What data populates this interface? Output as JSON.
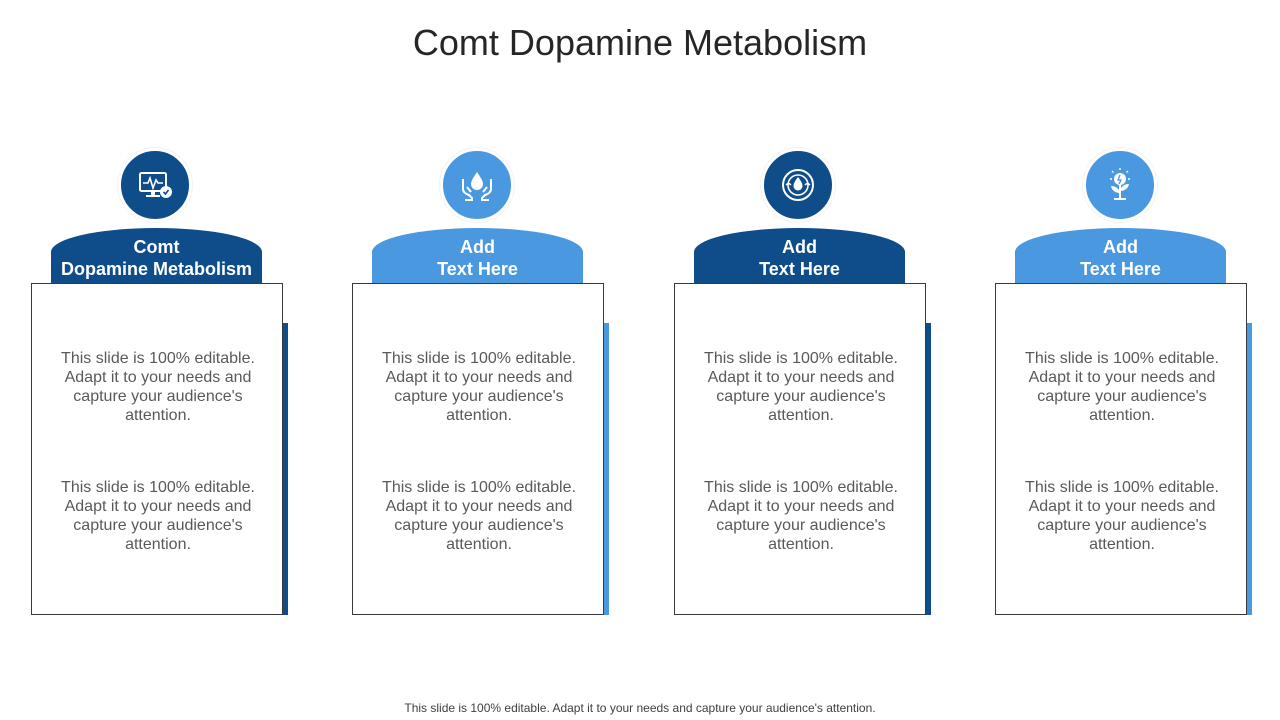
{
  "title": "Comt Dopamine Metabolism",
  "colors": {
    "dark_blue": "#0f4c8a",
    "light_blue": "#4a98e0"
  },
  "columns": [
    {
      "icon": "monitor-heartbeat-icon",
      "heading_line1": "Comt",
      "heading_line2": "Dopamine Metabolism",
      "text1": "This slide is 100% editable. Adapt it to your needs and capture your audience's attention.",
      "text2": "This slide is 100% editable. Adapt it to your needs and capture your audience's attention."
    },
    {
      "icon": "hands-water-drop-icon",
      "heading_line1": "Add",
      "heading_line2": "Text Here",
      "text1": "This slide is 100% editable. Adapt it to your needs and capture your audience's attention.",
      "text2": "This slide is 100% editable. Adapt it to your needs and capture your audience's attention."
    },
    {
      "icon": "water-drop-badge-icon",
      "heading_line1": "Add",
      "heading_line2": "Text Here",
      "text1": "This slide is 100% editable. Adapt it to your needs and capture your audience's attention.",
      "text2": "This slide is 100% editable. Adapt it to your needs and capture your audience's attention."
    },
    {
      "icon": "plant-lightbulb-icon",
      "heading_line1": "Add",
      "heading_line2": "Text Here",
      "text1": "This slide is 100% editable. Adapt it to your needs and capture your audience's attention.",
      "text2": "This slide is 100% editable. Adapt it to your needs and capture your audience's attention."
    }
  ],
  "footer": "This slide is 100% editable. Adapt it to your needs and capture your audience's attention."
}
